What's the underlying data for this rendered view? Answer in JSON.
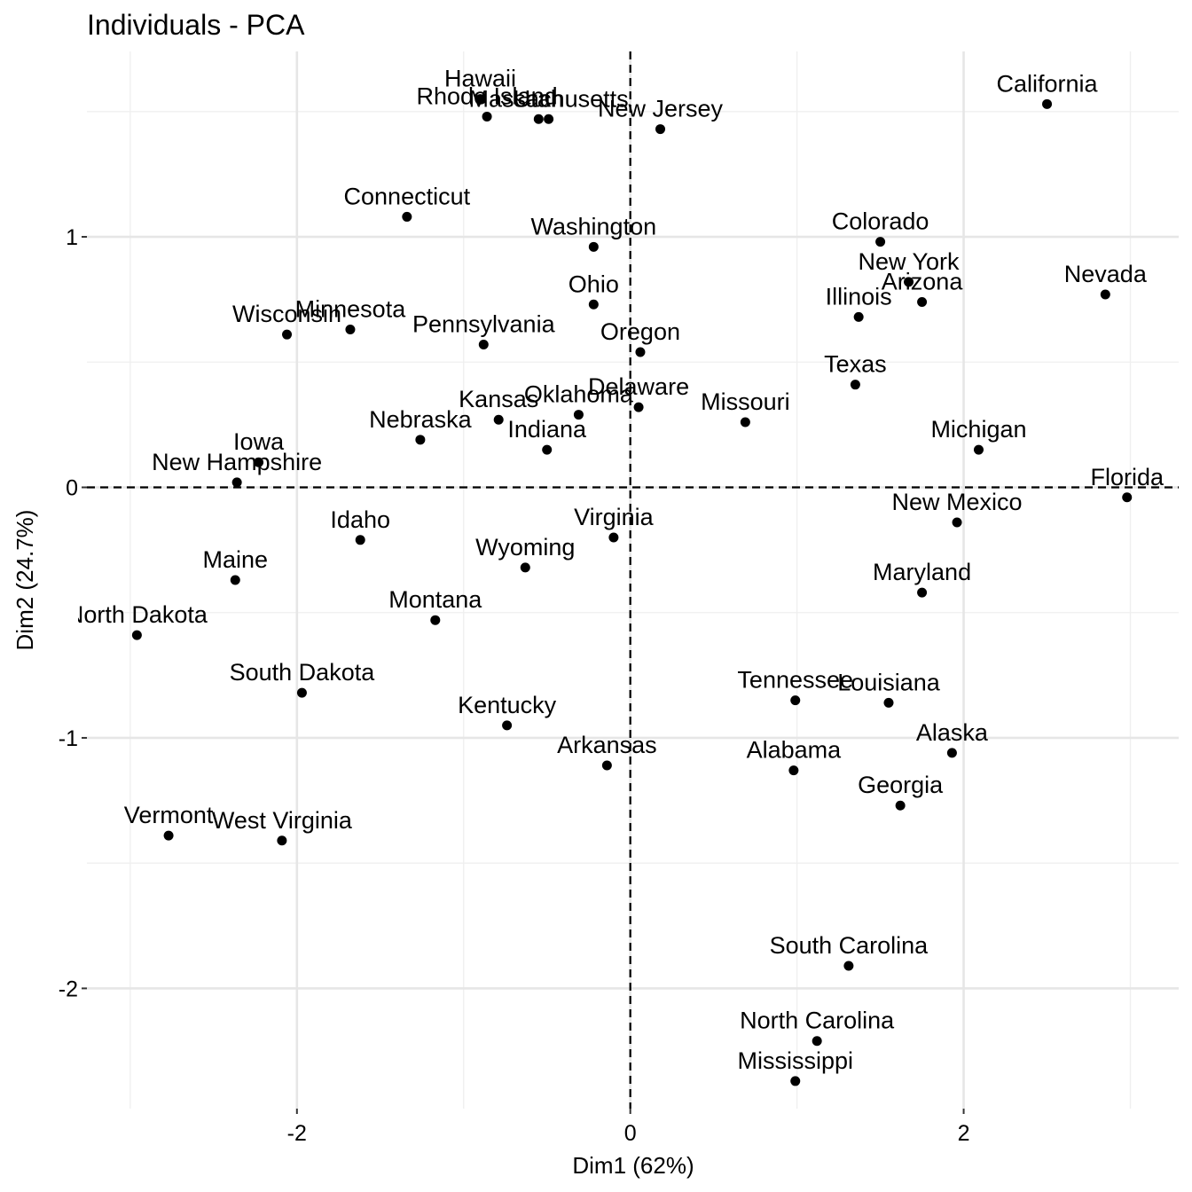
{
  "chart_data": {
    "type": "scatter",
    "title": "Individuals - PCA",
    "xlabel": "Dim1 (62%)",
    "ylabel": "Dim2 (24.7%)",
    "xlim": [
      -3.26,
      3.29
    ],
    "ylim": [
      -2.48,
      1.74
    ],
    "xticks": [
      -2,
      0,
      2
    ],
    "yticks": [
      -2,
      -1,
      0,
      1
    ],
    "x_tick_labels": [
      "-2",
      "0",
      "2"
    ],
    "y_tick_labels": [
      "-2",
      "-1",
      "0",
      "1"
    ],
    "grid": true,
    "reference_lines": {
      "x": 0,
      "y": 0,
      "style": "dashed"
    },
    "point_color": "#000000",
    "points": [
      {
        "label": "Alabama",
        "x": 0.98,
        "y": -1.13
      },
      {
        "label": "Alaska",
        "x": 1.93,
        "y": -1.06
      },
      {
        "label": "Arizona",
        "x": 1.75,
        "y": 0.74
      },
      {
        "label": "Arkansas",
        "x": -0.14,
        "y": -1.11
      },
      {
        "label": "California",
        "x": 2.5,
        "y": 1.53
      },
      {
        "label": "Colorado",
        "x": 1.5,
        "y": 0.98
      },
      {
        "label": "Connecticut",
        "x": -1.34,
        "y": 1.08
      },
      {
        "label": "Delaware",
        "x": 0.05,
        "y": 0.32
      },
      {
        "label": "Florida",
        "x": 2.98,
        "y": -0.04
      },
      {
        "label": "Georgia",
        "x": 1.62,
        "y": -1.27
      },
      {
        "label": "Hawaii",
        "x": -0.9,
        "y": 1.55
      },
      {
        "label": "Idaho",
        "x": -1.62,
        "y": -0.21
      },
      {
        "label": "Illinois",
        "x": 1.37,
        "y": 0.68
      },
      {
        "label": "Indiana",
        "x": -0.5,
        "y": 0.15
      },
      {
        "label": "Iowa",
        "x": -2.23,
        "y": 0.1
      },
      {
        "label": "Kansas",
        "x": -0.79,
        "y": 0.27
      },
      {
        "label": "Kentucky",
        "x": -0.74,
        "y": -0.95
      },
      {
        "label": "Louisiana",
        "x": 1.55,
        "y": -0.86
      },
      {
        "label": "Maine",
        "x": -2.37,
        "y": -0.37
      },
      {
        "label": "Maryland",
        "x": 1.75,
        "y": -0.42
      },
      {
        "label": "Massachusetts",
        "x": -0.49,
        "y": 1.47
      },
      {
        "label": "Michigan",
        "x": 2.09,
        "y": 0.15
      },
      {
        "label": "Minnesota",
        "x": -1.68,
        "y": 0.63
      },
      {
        "label": "Mississippi",
        "x": 0.99,
        "y": -2.37
      },
      {
        "label": "Missouri",
        "x": 0.69,
        "y": 0.26
      },
      {
        "label": "Montana",
        "x": -1.17,
        "y": -0.53
      },
      {
        "label": "Nebraska",
        "x": -1.26,
        "y": 0.19
      },
      {
        "label": "Nevada",
        "x": 2.85,
        "y": 0.77
      },
      {
        "label": "New Hampshire",
        "x": -2.36,
        "y": 0.02
      },
      {
        "label": "New Jersey",
        "x": 0.18,
        "y": 1.43
      },
      {
        "label": "New Mexico",
        "x": 1.96,
        "y": -0.14
      },
      {
        "label": "New York",
        "x": 1.67,
        "y": 0.82
      },
      {
        "label": "North Carolina",
        "x": 1.12,
        "y": -2.21
      },
      {
        "label": "North Dakota",
        "x": -2.96,
        "y": -0.59
      },
      {
        "label": "Ohio",
        "x": -0.22,
        "y": 0.73
      },
      {
        "label": "Oklahoma",
        "x": -0.31,
        "y": 0.29
      },
      {
        "label": "Oregon",
        "x": 0.06,
        "y": 0.54
      },
      {
        "label": "Pennsylvania",
        "x": -0.88,
        "y": 0.57
      },
      {
        "label": "Rhode Island",
        "x": -0.86,
        "y": 1.48
      },
      {
        "label": "South Carolina",
        "x": 1.31,
        "y": -1.91
      },
      {
        "label": "South Dakota",
        "x": -1.97,
        "y": -0.82
      },
      {
        "label": "Tennessee",
        "x": 0.99,
        "y": -0.85
      },
      {
        "label": "Texas",
        "x": 1.35,
        "y": 0.41
      },
      {
        "label": "Utah",
        "x": -0.55,
        "y": 1.47
      },
      {
        "label": "Vermont",
        "x": -2.77,
        "y": -1.39
      },
      {
        "label": "Virginia",
        "x": -0.1,
        "y": -0.2
      },
      {
        "label": "Washington",
        "x": -0.22,
        "y": 0.96
      },
      {
        "label": "West Virginia",
        "x": -2.09,
        "y": -1.41
      },
      {
        "label": "Wisconsin",
        "x": -2.06,
        "y": 0.61
      },
      {
        "label": "Wyoming",
        "x": -0.63,
        "y": -0.32
      }
    ]
  }
}
